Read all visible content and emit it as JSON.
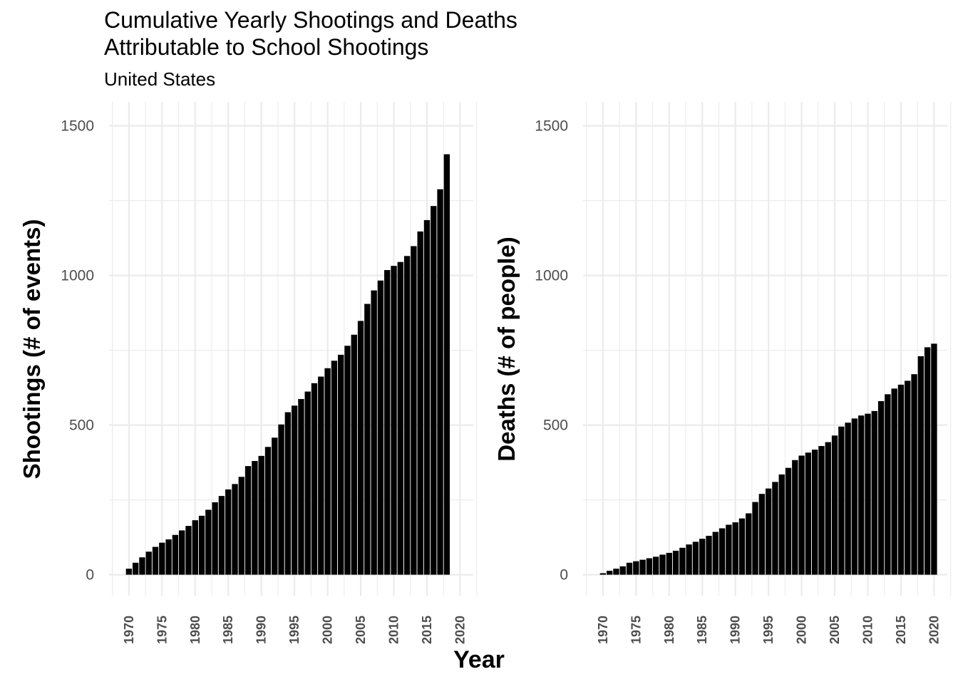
{
  "title_line1": "Cumulative Yearly Shootings and Deaths",
  "title_line2": "Attributable to School Shootings",
  "subtitle": "United States",
  "shared_xlabel": "Year",
  "chart_data": [
    {
      "type": "bar",
      "ylabel": "Shootings (# of events)",
      "xlim": [
        1967,
        2022
      ],
      "ylim": [
        -70,
        1580
      ],
      "yticks": [
        0,
        500,
        1000,
        1500
      ],
      "xticks": [
        1970,
        1975,
        1980,
        1985,
        1990,
        1995,
        2000,
        2005,
        2010,
        2015,
        2020
      ],
      "grid": true,
      "bar_color": "#000000",
      "x": [
        1970,
        1971,
        1972,
        1973,
        1974,
        1975,
        1976,
        1977,
        1978,
        1979,
        1980,
        1981,
        1982,
        1983,
        1984,
        1985,
        1986,
        1987,
        1988,
        1989,
        1990,
        1991,
        1992,
        1993,
        1994,
        1995,
        1996,
        1997,
        1998,
        1999,
        2000,
        2001,
        2002,
        2003,
        2004,
        2005,
        2006,
        2007,
        2008,
        2009,
        2010,
        2011,
        2012,
        2013,
        2014,
        2015,
        2016,
        2017,
        2018
      ],
      "values": [
        20,
        40,
        58,
        77,
        93,
        107,
        118,
        133,
        148,
        163,
        182,
        197,
        217,
        242,
        263,
        285,
        303,
        327,
        363,
        380,
        397,
        427,
        458,
        502,
        543,
        565,
        587,
        612,
        640,
        662,
        690,
        715,
        735,
        765,
        802,
        848,
        905,
        950,
        983,
        1018,
        1032,
        1045,
        1065,
        1098,
        1147,
        1185,
        1232,
        1288,
        1405
      ]
    },
    {
      "type": "bar",
      "ylabel": "Deaths (# of people)",
      "xlim": [
        1967,
        2022
      ],
      "ylim": [
        -70,
        1580
      ],
      "yticks": [
        0,
        500,
        1000,
        1500
      ],
      "xticks": [
        1970,
        1975,
        1980,
        1985,
        1990,
        1995,
        2000,
        2005,
        2010,
        2015,
        2020
      ],
      "grid": true,
      "bar_color": "#000000",
      "x": [
        1970,
        1971,
        1972,
        1973,
        1974,
        1975,
        1976,
        1977,
        1978,
        1979,
        1980,
        1981,
        1982,
        1983,
        1984,
        1985,
        1986,
        1987,
        1988,
        1989,
        1990,
        1991,
        1992,
        1993,
        1994,
        1995,
        1996,
        1997,
        1998,
        1999,
        2000,
        2001,
        2002,
        2003,
        2004,
        2005,
        2006,
        2007,
        2008,
        2009,
        2010,
        2011,
        2012,
        2013,
        2014,
        2015,
        2016,
        2017,
        2018,
        2019,
        2020
      ],
      "values": [
        5,
        13,
        20,
        28,
        40,
        45,
        50,
        55,
        60,
        67,
        73,
        80,
        90,
        101,
        110,
        120,
        130,
        143,
        155,
        167,
        175,
        188,
        205,
        243,
        270,
        288,
        310,
        335,
        357,
        383,
        398,
        408,
        418,
        430,
        443,
        465,
        495,
        508,
        522,
        532,
        538,
        547,
        580,
        603,
        622,
        635,
        648,
        670,
        730,
        760,
        772
      ]
    }
  ]
}
